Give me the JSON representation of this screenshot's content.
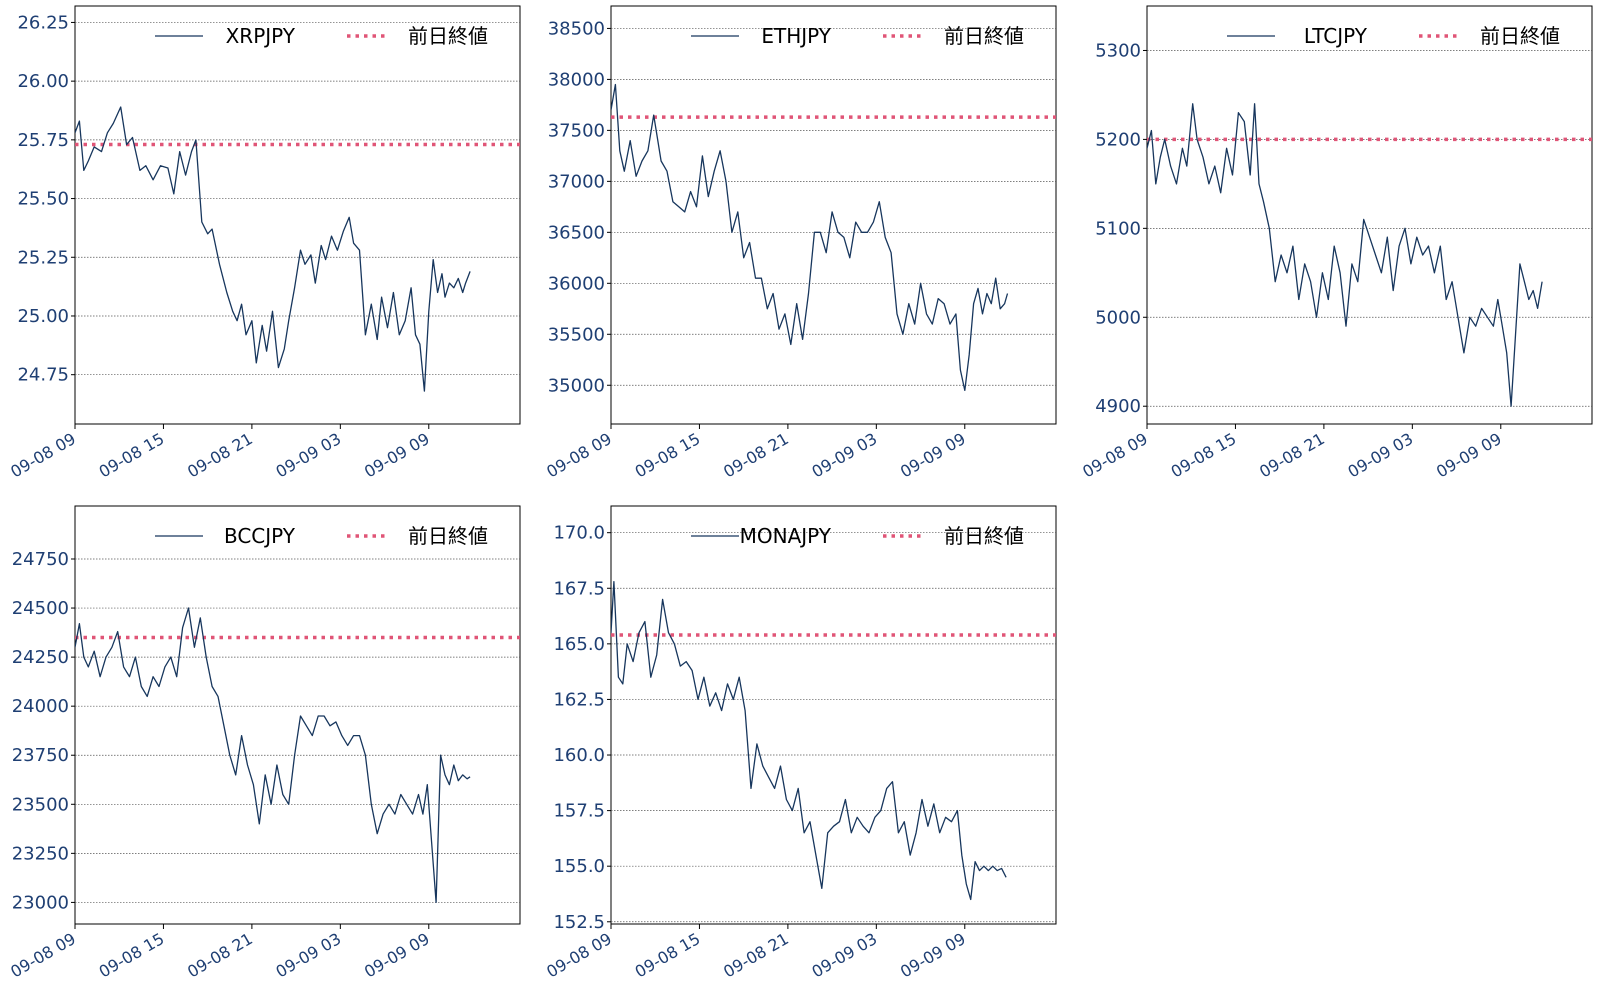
{
  "colors": {
    "price_line": "#17365d",
    "prev_close": "#e05577",
    "tick_text": "#1f3f73",
    "grid": "#555555",
    "frame": "#000000"
  },
  "chart_data": [
    {
      "type": "line",
      "title": "",
      "xlabel": "",
      "ylabel": "",
      "x_ticks": [
        "09-08 09",
        "09-08 15",
        "09-08 21",
        "09-09 03",
        "09-09 09"
      ],
      "xlim": [
        0,
        27
      ],
      "y_ticks": [
        "24.75",
        "25.00",
        "25.25",
        "25.50",
        "25.75",
        "26.00",
        "26.25"
      ],
      "ylim": [
        24.54,
        26.32
      ],
      "grid": "horizontal dotted",
      "legend": "top-right",
      "series": [
        {
          "name": "XRPJPY",
          "style": "solid",
          "x": [
            0,
            0.3,
            0.6,
            0.9,
            1.3,
            1.8,
            2.2,
            2.6,
            3.1,
            3.5,
            3.9,
            4.4,
            4.8,
            5.3,
            5.8,
            6.3,
            6.7,
            7.1,
            7.5,
            7.9,
            8.2,
            8.6,
            9.0,
            9.3,
            9.8,
            10.3,
            10.7,
            11.0,
            11.3,
            11.6,
            12.0,
            12.3,
            12.7,
            13.0,
            13.4,
            13.8,
            14.2,
            14.5,
            14.9,
            15.3,
            15.6,
            16.0,
            16.3,
            16.7,
            17.0,
            17.4,
            17.8,
            18.2,
            18.6,
            18.9,
            19.3,
            19.7,
            20.1,
            20.5,
            20.8,
            21.2,
            21.6,
            22.0,
            22.4,
            22.8,
            23.1,
            23.4,
            23.7,
            24.0,
            24.3,
            24.6,
            24.9,
            25.1,
            25.4,
            25.7,
            26.0,
            26.3,
            26.5,
            26.8
          ],
          "values": [
            25.78,
            25.83,
            25.62,
            25.66,
            25.72,
            25.7,
            25.78,
            25.82,
            25.89,
            25.73,
            25.76,
            25.62,
            25.64,
            25.58,
            25.64,
            25.63,
            25.52,
            25.7,
            25.6,
            25.7,
            25.75,
            25.4,
            25.35,
            25.37,
            25.22,
            25.1,
            25.02,
            24.98,
            25.05,
            24.92,
            24.98,
            24.8,
            24.96,
            24.85,
            25.02,
            24.78,
            24.86,
            24.98,
            25.12,
            25.28,
            25.22,
            25.26,
            25.14,
            25.3,
            25.24,
            25.34,
            25.28,
            25.36,
            25.42,
            25.31,
            25.28,
            24.92,
            25.05,
            24.9,
            25.08,
            24.95,
            25.1,
            24.92,
            24.98,
            25.12,
            24.92,
            24.88,
            24.68,
            25.02,
            25.24,
            25.1,
            25.18,
            25.08,
            25.14,
            25.12,
            25.16,
            25.1,
            25.14,
            25.19
          ]
        },
        {
          "name": "前日終値",
          "style": "dotted",
          "values": [
            25.73,
            25.73
          ]
        }
      ]
    },
    {
      "type": "line",
      "title": "",
      "xlabel": "",
      "ylabel": "",
      "x_ticks": [
        "09-08 09",
        "09-08 15",
        "09-08 21",
        "09-09 03",
        "09-09 09"
      ],
      "xlim": [
        0,
        27
      ],
      "y_ticks": [
        "35000",
        "35500",
        "36000",
        "36500",
        "37000",
        "37500",
        "38000",
        "38500"
      ],
      "ylim": [
        34620,
        38720
      ],
      "grid": "horizontal dotted",
      "legend": "top-right",
      "series": [
        {
          "name": "ETHJPY",
          "style": "solid",
          "x": [
            0,
            0.3,
            0.6,
            0.9,
            1.3,
            1.7,
            2.1,
            2.5,
            2.9,
            3.4,
            3.8,
            4.2,
            4.6,
            5.0,
            5.4,
            5.8,
            6.2,
            6.6,
            7.0,
            7.4,
            7.8,
            8.2,
            8.6,
            9.0,
            9.4,
            9.8,
            10.2,
            10.6,
            11.0,
            11.4,
            11.8,
            12.2,
            12.6,
            13.0,
            13.4,
            13.8,
            14.2,
            14.6,
            15.0,
            15.4,
            15.8,
            16.2,
            16.6,
            17.0,
            17.4,
            17.8,
            18.2,
            18.6,
            19.0,
            19.4,
            19.8,
            20.2,
            20.6,
            21.0,
            21.4,
            21.8,
            22.2,
            22.6,
            23.0,
            23.4,
            23.7,
            24.0,
            24.3,
            24.6,
            24.9,
            25.2,
            25.5,
            25.8,
            26.1,
            26.4,
            26.7,
            26.9
          ],
          "values": [
            37700,
            37950,
            37300,
            37100,
            37400,
            37050,
            37200,
            37300,
            37650,
            37200,
            37100,
            36800,
            36750,
            36700,
            36900,
            36750,
            37250,
            36850,
            37100,
            37300,
            37000,
            36500,
            36700,
            36250,
            36400,
            36050,
            36050,
            35750,
            35900,
            35550,
            35700,
            35400,
            35800,
            35450,
            35900,
            36500,
            36500,
            36300,
            36700,
            36500,
            36450,
            36250,
            36600,
            36500,
            36500,
            36600,
            36800,
            36450,
            36300,
            35700,
            35500,
            35800,
            35600,
            36000,
            35700,
            35600,
            35850,
            35800,
            35600,
            35700,
            35150,
            34950,
            35300,
            35800,
            35950,
            35700,
            35900,
            35800,
            36050,
            35750,
            35800,
            35900
          ]
        },
        {
          "name": "前日終値",
          "style": "dotted",
          "values": [
            37630,
            37630
          ]
        }
      ]
    },
    {
      "type": "line",
      "title": "",
      "xlabel": "",
      "ylabel": "",
      "x_ticks": [
        "09-08 09",
        "09-08 15",
        "09-08 21",
        "09-09 03",
        "09-09 09"
      ],
      "xlim": [
        0,
        27
      ],
      "y_ticks": [
        "4900",
        "5000",
        "5100",
        "5200",
        "5300"
      ],
      "ylim": [
        4880,
        5350
      ],
      "grid": "horizontal dotted",
      "legend": "top-right",
      "series": [
        {
          "name": "LTCJPY",
          "style": "solid",
          "x": [
            0,
            0.3,
            0.6,
            0.9,
            1.2,
            1.6,
            2.0,
            2.4,
            2.7,
            3.1,
            3.4,
            3.8,
            4.2,
            4.6,
            5.0,
            5.4,
            5.8,
            6.2,
            6.6,
            7.0,
            7.3,
            7.6,
            7.9,
            8.3,
            8.7,
            9.1,
            9.5,
            9.9,
            10.3,
            10.7,
            11.1,
            11.5,
            11.9,
            12.3,
            12.7,
            13.1,
            13.5,
            13.9,
            14.3,
            14.7,
            15.1,
            15.5,
            15.9,
            16.3,
            16.7,
            17.1,
            17.5,
            17.9,
            18.3,
            18.7,
            19.1,
            19.5,
            19.9,
            20.3,
            20.7,
            21.1,
            21.5,
            21.9,
            22.3,
            22.7,
            23.1,
            23.5,
            23.8,
            24.1,
            24.4,
            24.7,
            25.0,
            25.3,
            25.6,
            25.9,
            26.2,
            26.5,
            26.8
          ],
          "values": [
            5190,
            5210,
            5150,
            5180,
            5200,
            5170,
            5150,
            5190,
            5170,
            5240,
            5200,
            5180,
            5150,
            5170,
            5140,
            5190,
            5160,
            5230,
            5220,
            5160,
            5240,
            5150,
            5130,
            5100,
            5040,
            5070,
            5050,
            5080,
            5020,
            5060,
            5040,
            5000,
            5050,
            5020,
            5080,
            5050,
            4990,
            5060,
            5040,
            5110,
            5090,
            5070,
            5050,
            5090,
            5030,
            5080,
            5100,
            5060,
            5090,
            5070,
            5080,
            5050,
            5080,
            5020,
            5040,
            5000,
            4960,
            5000,
            4990,
            5010,
            5000,
            4990,
            5020,
            4990,
            4960,
            4900,
            4980,
            5060,
            5040,
            5020,
            5030,
            5010,
            5040
          ]
        },
        {
          "name": "前日終値",
          "style": "dotted",
          "values": [
            5200,
            5200
          ]
        }
      ]
    },
    {
      "type": "line",
      "title": "",
      "xlabel": "",
      "ylabel": "",
      "x_ticks": [
        "09-08 09",
        "09-08 15",
        "09-08 21",
        "09-09 03",
        "09-09 09"
      ],
      "xlim": [
        0,
        27
      ],
      "y_ticks": [
        "23000",
        "23250",
        "23500",
        "23750",
        "24000",
        "24250",
        "24500",
        "24750"
      ],
      "ylim": [
        22890,
        25020
      ],
      "grid": "horizontal dotted",
      "legend": "top-right",
      "series": [
        {
          "name": "BCCJPY",
          "style": "solid",
          "x": [
            0,
            0.3,
            0.6,
            0.9,
            1.3,
            1.7,
            2.1,
            2.5,
            2.9,
            3.3,
            3.7,
            4.1,
            4.5,
            4.9,
            5.3,
            5.7,
            6.1,
            6.5,
            6.9,
            7.3,
            7.7,
            8.1,
            8.5,
            8.9,
            9.3,
            9.7,
            10.1,
            10.5,
            10.9,
            11.3,
            11.7,
            12.1,
            12.5,
            12.9,
            13.3,
            13.7,
            14.1,
            14.5,
            14.9,
            15.3,
            15.7,
            16.1,
            16.5,
            16.9,
            17.3,
            17.7,
            18.1,
            18.5,
            18.9,
            19.3,
            19.7,
            20.1,
            20.5,
            20.9,
            21.3,
            21.7,
            22.1,
            22.5,
            22.9,
            23.3,
            23.6,
            23.9,
            24.2,
            24.5,
            24.8,
            25.1,
            25.4,
            25.7,
            26.0,
            26.3,
            26.6,
            26.8
          ],
          "values": [
            24300,
            24420,
            24250,
            24200,
            24280,
            24150,
            24250,
            24300,
            24380,
            24200,
            24150,
            24250,
            24100,
            24050,
            24150,
            24100,
            24200,
            24250,
            24150,
            24400,
            24500,
            24300,
            24450,
            24250,
            24100,
            24050,
            23900,
            23750,
            23650,
            23850,
            23700,
            23600,
            23400,
            23650,
            23500,
            23700,
            23550,
            23500,
            23750,
            23950,
            23900,
            23850,
            23950,
            23950,
            23900,
            23920,
            23850,
            23800,
            23850,
            23850,
            23750,
            23500,
            23350,
            23450,
            23500,
            23450,
            23550,
            23500,
            23450,
            23550,
            23450,
            23600,
            23300,
            23000,
            23750,
            23650,
            23600,
            23700,
            23620,
            23650,
            23630,
            23640
          ]
        },
        {
          "name": "前日終値",
          "style": "dotted",
          "values": [
            24350,
            24350
          ]
        }
      ]
    },
    {
      "type": "line",
      "title": "",
      "xlabel": "",
      "ylabel": "",
      "x_ticks": [
        "09-08 09",
        "09-08 15",
        "09-08 21",
        "09-09 03",
        "09-09 09"
      ],
      "xlim": [
        0,
        27
      ],
      "y_ticks": [
        "152.5",
        "155.0",
        "157.5",
        "160.0",
        "162.5",
        "165.0",
        "167.5",
        "170.0"
      ],
      "ylim": [
        152.4,
        171.2
      ],
      "grid": "horizontal dotted",
      "legend": "top-right",
      "series": [
        {
          "name": "MONAJPY",
          "style": "solid",
          "x": [
            0,
            0.2,
            0.5,
            0.8,
            1.1,
            1.5,
            1.9,
            2.3,
            2.7,
            3.1,
            3.5,
            3.9,
            4.3,
            4.7,
            5.1,
            5.5,
            5.9,
            6.3,
            6.7,
            7.1,
            7.5,
            7.9,
            8.3,
            8.7,
            9.1,
            9.5,
            9.9,
            10.3,
            10.7,
            11.1,
            11.5,
            11.9,
            12.3,
            12.7,
            13.1,
            13.5,
            13.9,
            14.3,
            14.7,
            15.1,
            15.5,
            15.9,
            16.3,
            16.7,
            17.1,
            17.5,
            17.9,
            18.3,
            18.7,
            19.1,
            19.5,
            19.9,
            20.3,
            20.7,
            21.1,
            21.5,
            21.9,
            22.3,
            22.7,
            23.1,
            23.5,
            23.8,
            24.1,
            24.4,
            24.7,
            25.0,
            25.3,
            25.6,
            25.9,
            26.2,
            26.5,
            26.8
          ],
          "values": [
            165.5,
            167.8,
            163.5,
            163.2,
            165.0,
            164.2,
            165.5,
            166.0,
            163.5,
            164.5,
            167.0,
            165.5,
            165.0,
            164.0,
            164.2,
            163.8,
            162.5,
            163.5,
            162.2,
            162.8,
            162.0,
            163.2,
            162.5,
            163.5,
            162.0,
            158.5,
            160.5,
            159.5,
            159.0,
            158.5,
            159.5,
            158.0,
            157.5,
            158.5,
            156.5,
            157.0,
            155.5,
            154.0,
            156.5,
            156.8,
            157.0,
            158.0,
            156.5,
            157.2,
            156.8,
            156.5,
            157.2,
            157.5,
            158.5,
            158.8,
            156.5,
            157.0,
            155.5,
            156.5,
            158.0,
            156.8,
            157.8,
            156.5,
            157.2,
            157.0,
            157.5,
            155.5,
            154.2,
            153.5,
            155.2,
            154.8,
            155.0,
            154.8,
            155.0,
            154.8,
            154.9,
            154.5
          ]
        },
        {
          "name": "前日終値",
          "style": "dotted",
          "values": [
            165.4,
            165.4
          ]
        }
      ]
    }
  ]
}
